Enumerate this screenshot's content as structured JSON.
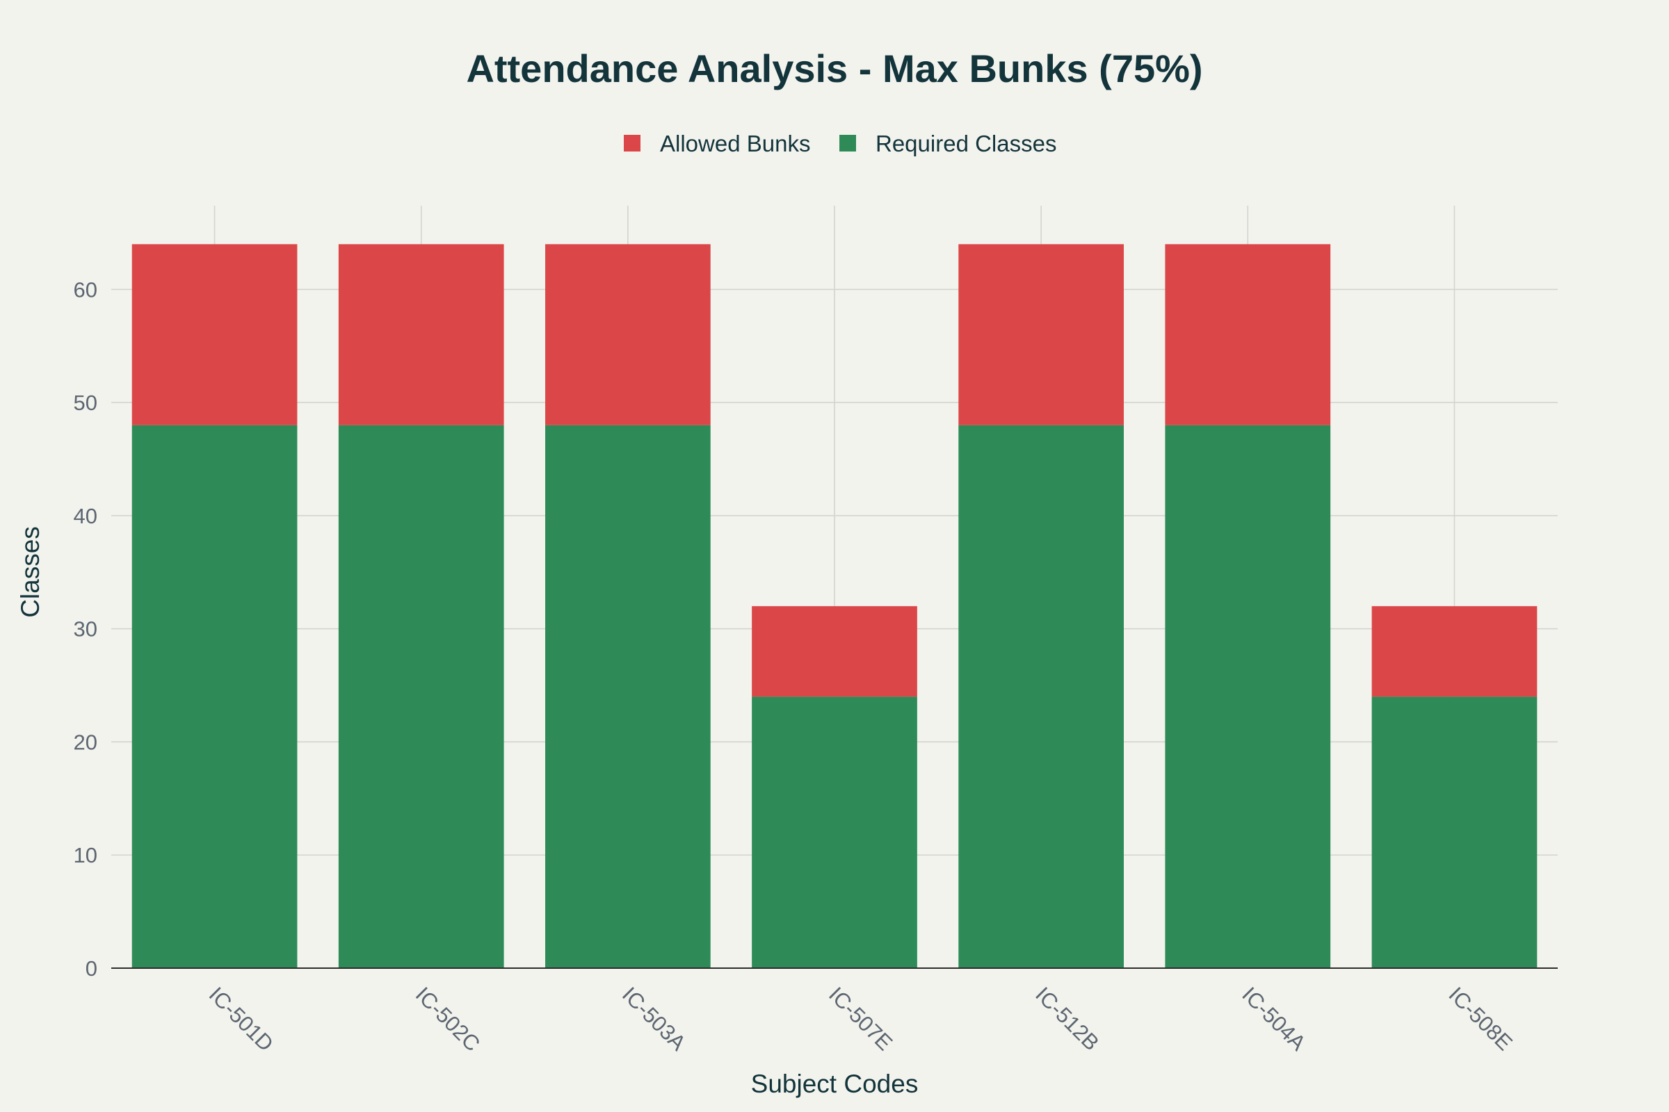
{
  "chart_data": {
    "type": "bar",
    "stacked": true,
    "title": "Attendance Analysis - Max Bunks (75%)",
    "xlabel": "Subject Codes",
    "ylabel": "Classes",
    "categories": [
      "IC-501D",
      "IC-502C",
      "IC-503A",
      "IC-507E",
      "IC-512B",
      "IC-504A",
      "IC-508E"
    ],
    "series": [
      {
        "name": "Required Classes",
        "values": [
          48,
          48,
          48,
          24,
          48,
          48,
          24
        ],
        "color": "#2e8b57"
      },
      {
        "name": "Allowed Bunks",
        "values": [
          16,
          16,
          16,
          8,
          16,
          16,
          8
        ],
        "color": "#db4748"
      }
    ],
    "legend_order": [
      "Allowed Bunks",
      "Required Classes"
    ],
    "legend_placement": "top-center",
    "ylim": [
      0,
      67.4
    ],
    "yticks": [
      0,
      10,
      20,
      30,
      40,
      50,
      60
    ],
    "grid": true,
    "background_color": "#f3f3ee"
  }
}
